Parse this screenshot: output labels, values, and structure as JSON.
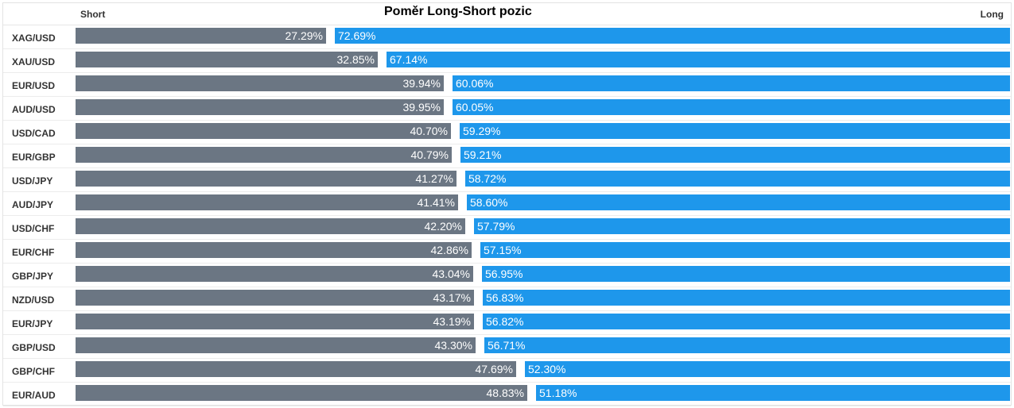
{
  "header": {
    "title": "Poměr Long-Short pozic",
    "short_label": "Short",
    "long_label": "Long"
  },
  "colors": {
    "short": "#6b7683",
    "long": "#1e97eb"
  },
  "chart_data": {
    "type": "bar",
    "orientation": "horizontal-stacked",
    "title": "Poměr Long-Short pozic",
    "categories": [
      "XAG/USD",
      "XAU/USD",
      "EUR/USD",
      "AUD/USD",
      "USD/CAD",
      "EUR/GBP",
      "USD/JPY",
      "AUD/JPY",
      "USD/CHF",
      "EUR/CHF",
      "GBP/JPY",
      "NZD/USD",
      "EUR/JPY",
      "GBP/USD",
      "GBP/CHF",
      "EUR/AUD"
    ],
    "series": [
      {
        "name": "Short",
        "values": [
          27.29,
          32.85,
          39.94,
          39.95,
          40.7,
          40.79,
          41.27,
          41.41,
          42.2,
          42.86,
          43.04,
          43.17,
          43.19,
          43.3,
          47.69,
          48.83
        ],
        "labels": [
          "27.29%",
          "32.85%",
          "39.94%",
          "39.95%",
          "40.70%",
          "40.79%",
          "41.27%",
          "41.41%",
          "42.20%",
          "42.86%",
          "43.04%",
          "43.17%",
          "43.19%",
          "43.30%",
          "47.69%",
          "48.83%"
        ]
      },
      {
        "name": "Long",
        "values": [
          72.69,
          67.14,
          60.06,
          60.05,
          59.29,
          59.21,
          58.72,
          58.6,
          57.79,
          57.15,
          56.95,
          56.83,
          56.82,
          56.71,
          52.3,
          51.18
        ],
        "labels": [
          "72.69%",
          "67.14%",
          "60.06%",
          "60.05%",
          "59.29%",
          "59.21%",
          "58.72%",
          "58.60%",
          "57.79%",
          "57.15%",
          "56.95%",
          "56.83%",
          "56.82%",
          "56.71%",
          "52.30%",
          "51.18%"
        ]
      }
    ]
  }
}
